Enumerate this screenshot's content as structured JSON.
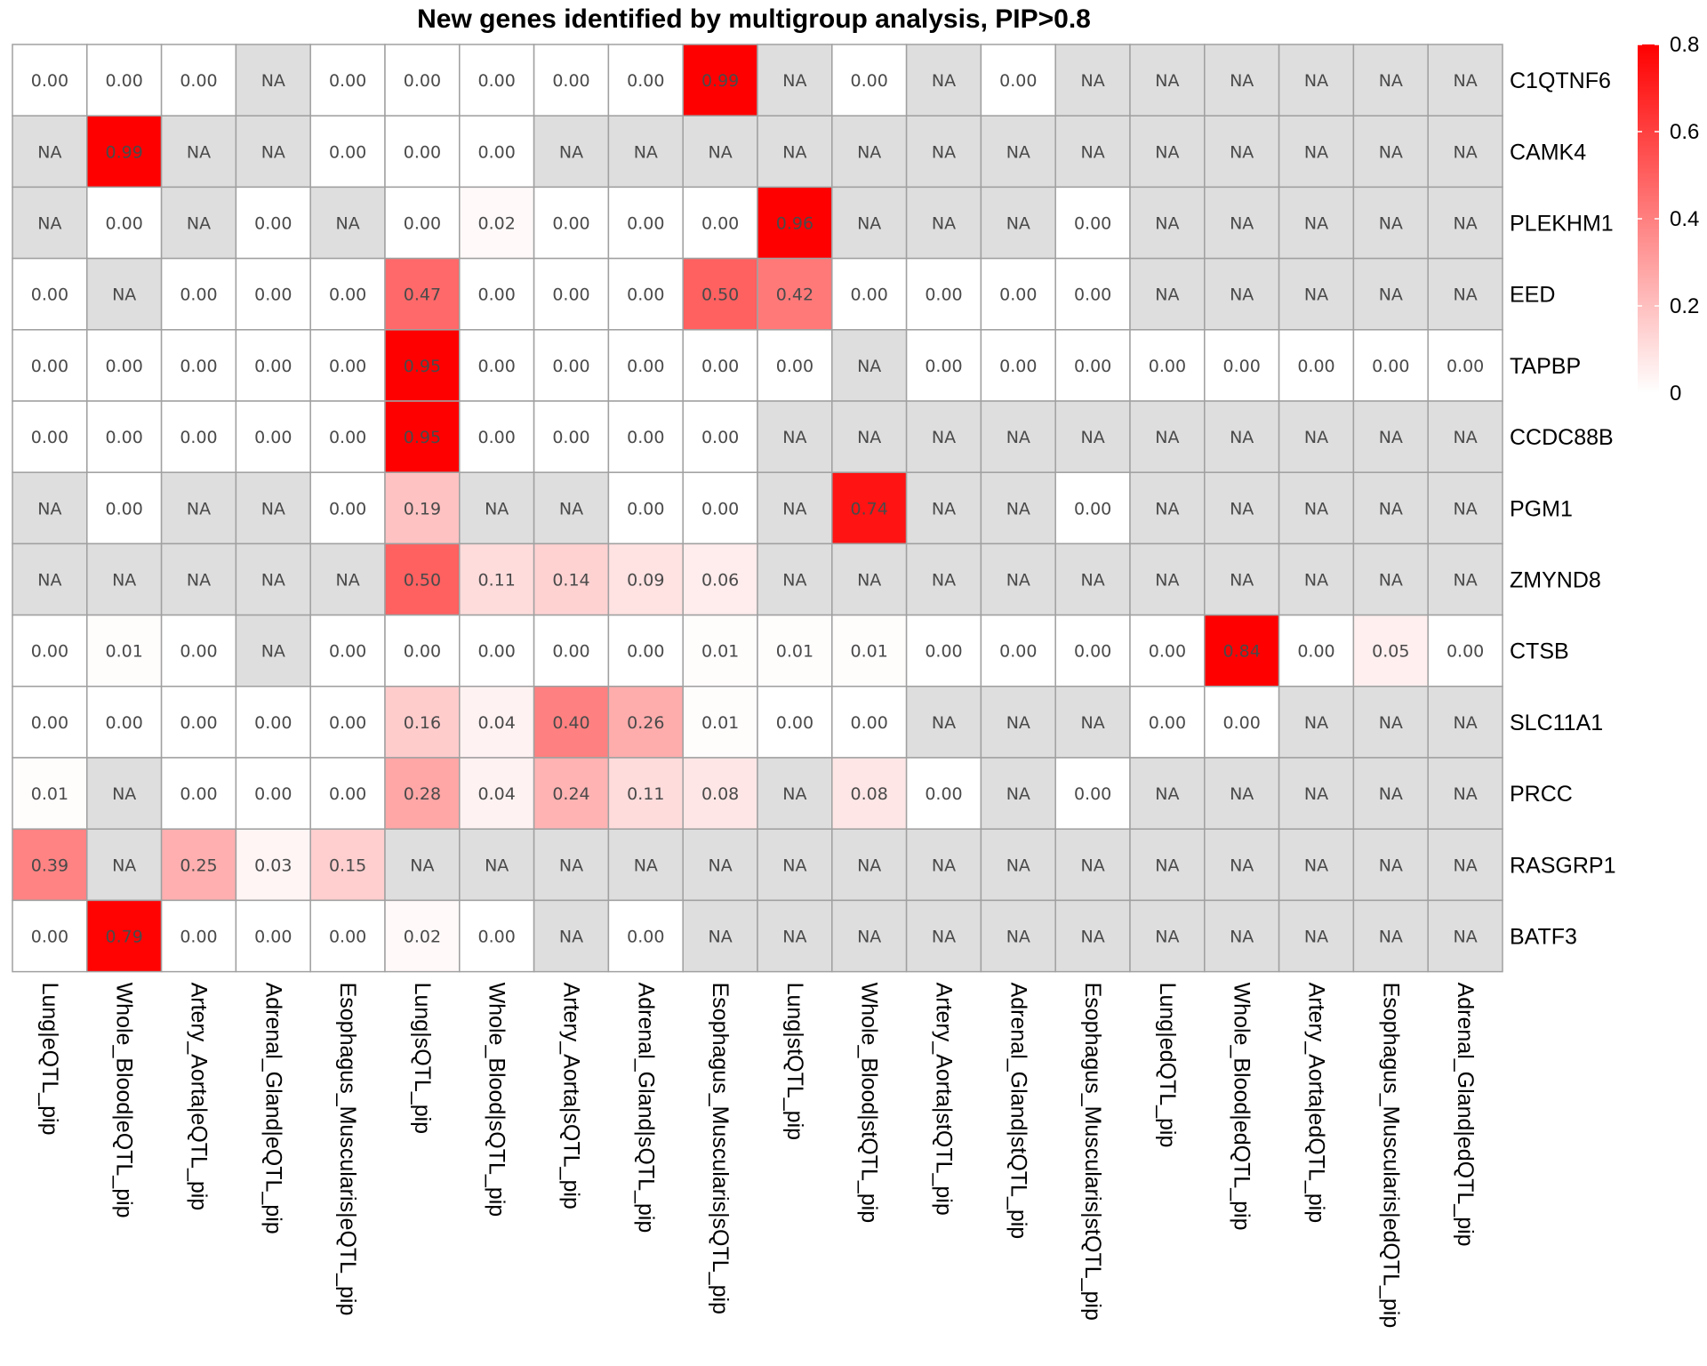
{
  "chart_data": {
    "type": "heatmap",
    "title": "New genes identified by multigroup analysis, PIP>0.8",
    "columns": [
      "Lung|eQTL_pip",
      "Whole_Blood|eQTL_pip",
      "Artery_Aorta|eQTL_pip",
      "Adrenal_Gland|eQTL_pip",
      "Esophagus_Muscularis|eQTL_pip",
      "Lung|sQTL_pip",
      "Whole_Blood|sQTL_pip",
      "Artery_Aorta|sQTL_pip",
      "Adrenal_Gland|sQTL_pip",
      "Esophagus_Muscularis|sQTL_pip",
      "Lung|stQTL_pip",
      "Whole_Blood|stQTL_pip",
      "Artery_Aorta|stQTL_pip",
      "Adrenal_Gland|stQTL_pip",
      "Esophagus_Muscularis|stQTL_pip",
      "Lung|edQTL_pip",
      "Whole_Blood|edQTL_pip",
      "Artery_Aorta|edQTL_pip",
      "Esophagus_Muscularis|edQTL_pip",
      "Adrenal_Gland|edQTL_pip"
    ],
    "rows": [
      "C1QTNF6",
      "CAMK4",
      "PLEKHM1",
      "EED",
      "TAPBP",
      "CCDC88B",
      "PGM1",
      "ZMYND8",
      "CTSB",
      "SLC11A1",
      "PRCC",
      "RASGRP1",
      "BATF3"
    ],
    "values": [
      [
        0.0,
        0.0,
        0.0,
        null,
        0.0,
        0.0,
        0.0,
        0.0,
        0.0,
        0.99,
        null,
        0.0,
        null,
        0.0,
        null,
        null,
        null,
        null,
        null,
        null
      ],
      [
        null,
        0.99,
        null,
        null,
        0.0,
        0.0,
        0.0,
        null,
        null,
        null,
        null,
        null,
        null,
        null,
        null,
        null,
        null,
        null,
        null,
        null
      ],
      [
        null,
        0.0,
        null,
        0.0,
        null,
        0.0,
        0.02,
        0.0,
        0.0,
        0.0,
        0.96,
        null,
        null,
        null,
        0.0,
        null,
        null,
        null,
        null,
        null
      ],
      [
        0.0,
        null,
        0.0,
        0.0,
        0.0,
        0.47,
        0.0,
        0.0,
        0.0,
        0.5,
        0.42,
        0.0,
        0.0,
        0.0,
        0.0,
        null,
        null,
        null,
        null,
        null
      ],
      [
        0.0,
        0.0,
        0.0,
        0.0,
        0.0,
        0.95,
        0.0,
        0.0,
        0.0,
        0.0,
        0.0,
        null,
        0.0,
        0.0,
        0.0,
        0.0,
        0.0,
        0.0,
        0.0,
        0.0
      ],
      [
        0.0,
        0.0,
        0.0,
        0.0,
        0.0,
        0.95,
        0.0,
        0.0,
        0.0,
        0.0,
        null,
        null,
        null,
        null,
        null,
        null,
        null,
        null,
        null,
        null
      ],
      [
        null,
        0.0,
        null,
        null,
        0.0,
        0.19,
        null,
        null,
        0.0,
        0.0,
        null,
        0.74,
        null,
        null,
        0.0,
        null,
        null,
        null,
        null,
        null
      ],
      [
        null,
        null,
        null,
        null,
        null,
        0.5,
        0.11,
        0.14,
        0.09,
        0.06,
        null,
        null,
        null,
        null,
        null,
        null,
        null,
        null,
        null,
        null
      ],
      [
        0.0,
        0.01,
        0.0,
        null,
        0.0,
        0.0,
        0.0,
        0.0,
        0.0,
        0.01,
        0.01,
        0.01,
        0.0,
        0.0,
        0.0,
        0.0,
        0.84,
        0.0,
        0.05,
        0.0
      ],
      [
        0.0,
        0.0,
        0.0,
        0.0,
        0.0,
        0.16,
        0.04,
        0.4,
        0.26,
        0.01,
        0.0,
        0.0,
        null,
        null,
        null,
        0.0,
        0.0,
        null,
        null,
        null
      ],
      [
        0.01,
        null,
        0.0,
        0.0,
        0.0,
        0.28,
        0.04,
        0.24,
        0.11,
        0.08,
        null,
        0.08,
        0.0,
        null,
        0.0,
        null,
        null,
        null,
        null,
        null
      ],
      [
        0.39,
        null,
        0.25,
        0.03,
        0.15,
        null,
        null,
        null,
        null,
        null,
        null,
        null,
        null,
        null,
        null,
        null,
        null,
        null,
        null,
        null
      ],
      [
        0.0,
        0.79,
        0.0,
        0.0,
        0.0,
        0.02,
        0.0,
        null,
        0.0,
        null,
        null,
        null,
        null,
        null,
        null,
        null,
        null,
        null,
        null,
        null
      ]
    ],
    "na_label": "NA",
    "number_format_decimals": 2,
    "color_scale": {
      "low": "#ffffff",
      "high": "#ff0000",
      "na": "#dedede",
      "min": 0,
      "max": 0.8
    },
    "legend": {
      "ticks": [
        0,
        0.2,
        0.4,
        0.6,
        0.8
      ],
      "tick_labels": [
        "0",
        "0.2",
        "0.4",
        "0.6",
        "0.8"
      ],
      "placement": "right"
    },
    "grid_color": "#a0a0a0"
  }
}
